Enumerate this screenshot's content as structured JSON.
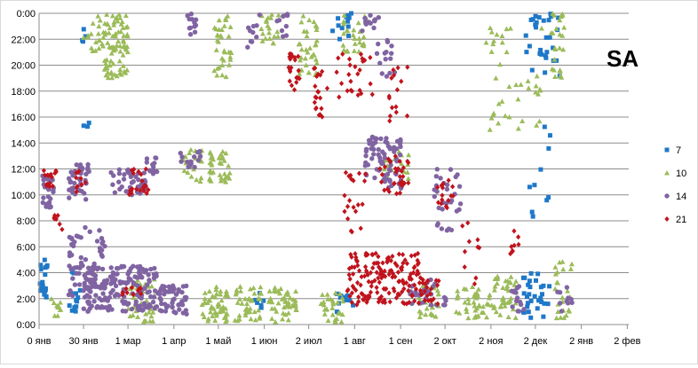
{
  "chart_data": {
    "type": "scatter",
    "title": "SA",
    "xlabel": "",
    "ylabel": "",
    "grid": "horizontal",
    "legend": "right",
    "y_axis_unit": "hours",
    "ylim": [
      0,
      24
    ],
    "yticks": [
      0,
      2,
      4,
      6,
      8,
      10,
      12,
      14,
      16,
      18,
      20,
      22,
      24
    ],
    "ytick_labels": [
      "0:00",
      "2:00",
      "4:00",
      "6:00",
      "8:00",
      "10:00",
      "12:00",
      "14:00",
      "16:00",
      "18:00",
      "20:00",
      "22:00",
      "0:00"
    ],
    "x_axis_unit": "days since 0 янв",
    "xlim": [
      0,
      398
    ],
    "xticks": [
      0,
      30,
      60,
      91,
      121,
      152,
      182,
      213,
      244,
      274,
      305,
      335,
      366,
      397
    ],
    "xtick_labels": [
      "0 янв",
      "30 янв",
      "1 мар",
      "1 апр",
      "1 май",
      "1 июн",
      "2 июл",
      "1 авг",
      "1 сен",
      "2 окт",
      "2 ноя",
      "2 дек",
      "2 янв",
      "2 фев"
    ],
    "series": [
      {
        "name": "7",
        "color": "#1f78c8",
        "marker": "square",
        "clusters": [
          {
            "x": [
              0,
              6
            ],
            "y": [
              1.5,
              5.0
            ],
            "n": 18
          },
          {
            "x": [
              18,
              28
            ],
            "y": [
              1.0,
              4.5
            ],
            "n": 14
          },
          {
            "x": [
              28,
              32
            ],
            "y": [
              21.5,
              23.0
            ],
            "n": 4
          },
          {
            "x": [
              30,
              36
            ],
            "y": [
              14.5,
              16.0
            ],
            "n": 3
          },
          {
            "x": [
              146,
              152
            ],
            "y": [
              0.8,
              2.5
            ],
            "n": 6
          },
          {
            "x": [
              200,
              212
            ],
            "y": [
              0.5,
              2.5
            ],
            "n": 10
          },
          {
            "x": [
              198,
              214
            ],
            "y": [
              22.0,
              24.0
            ],
            "n": 12
          },
          {
            "x": [
              325,
              345
            ],
            "y": [
              0.5,
              4.0
            ],
            "n": 30
          },
          {
            "x": [
              328,
              352
            ],
            "y": [
              19.0,
              24.0
            ],
            "n": 30
          },
          {
            "x": [
              330,
              348
            ],
            "y": [
              8.0,
              16.0
            ],
            "n": 10
          }
        ]
      },
      {
        "name": "10",
        "color": "#9bbb59",
        "marker": "triangle",
        "clusters": [
          {
            "x": [
              8,
              16
            ],
            "y": [
              0.5,
              2.0
            ],
            "n": 10
          },
          {
            "x": [
              44,
              60
            ],
            "y": [
              19.0,
              24.0
            ],
            "n": 80
          },
          {
            "x": [
              30,
              44
            ],
            "y": [
              21.0,
              24.0
            ],
            "n": 20
          },
          {
            "x": [
              60,
              80
            ],
            "y": [
              0.2,
              3.5
            ],
            "n": 45
          },
          {
            "x": [
              95,
              110
            ],
            "y": [
              11.0,
              13.5
            ],
            "n": 25
          },
          {
            "x": [
              110,
              128
            ],
            "y": [
              0.2,
              3.0
            ],
            "n": 50
          },
          {
            "x": [
              115,
              130
            ],
            "y": [
              11.0,
              13.5
            ],
            "n": 35
          },
          {
            "x": [
              118,
              130
            ],
            "y": [
              19.0,
              24.0
            ],
            "n": 35
          },
          {
            "x": [
              132,
              150
            ],
            "y": [
              0.2,
              3.0
            ],
            "n": 40
          },
          {
            "x": [
              155,
              175
            ],
            "y": [
              0.2,
              3.0
            ],
            "n": 45
          },
          {
            "x": [
              150,
              162
            ],
            "y": [
              21.5,
              24.0
            ],
            "n": 20
          },
          {
            "x": [
              175,
              188
            ],
            "y": [
              19.0,
              24.0
            ],
            "n": 35
          },
          {
            "x": [
              190,
              206
            ],
            "y": [
              0.2,
              2.5
            ],
            "n": 30
          },
          {
            "x": [
              205,
              222
            ],
            "y": [
              21.0,
              24.0
            ],
            "n": 30
          },
          {
            "x": [
              255,
              270
            ],
            "y": [
              0.5,
              3.0
            ],
            "n": 30
          },
          {
            "x": [
              280,
              300
            ],
            "y": [
              0.5,
              3.0
            ],
            "n": 35
          },
          {
            "x": [
              302,
              322
            ],
            "y": [
              0.5,
              4.0
            ],
            "n": 45
          },
          {
            "x": [
              300,
              340
            ],
            "y": [
              15.0,
              24.0
            ],
            "n": 40
          },
          {
            "x": [
              345,
              355
            ],
            "y": [
              19.0,
              24.0
            ],
            "n": 25
          },
          {
            "x": [
              348,
              360
            ],
            "y": [
              0.5,
              5.0
            ],
            "n": 25
          },
          {
            "x": [
              230,
              250
            ],
            "y": [
              11.0,
              13.5
            ],
            "n": 15
          }
        ]
      },
      {
        "name": "14",
        "color": "#8064a2",
        "marker": "circle",
        "clusters": [
          {
            "x": [
              2,
              10
            ],
            "y": [
              9.0,
              11.5
            ],
            "n": 30
          },
          {
            "x": [
              20,
              34
            ],
            "y": [
              9.5,
              12.5
            ],
            "n": 40
          },
          {
            "x": [
              20,
              45
            ],
            "y": [
              1.5,
              7.5
            ],
            "n": 60
          },
          {
            "x": [
              30,
              80
            ],
            "y": [
              1.0,
              4.5
            ],
            "n": 170
          },
          {
            "x": [
              80,
              100
            ],
            "y": [
              0.8,
              3.0
            ],
            "n": 50
          },
          {
            "x": [
              48,
              72
            ],
            "y": [
              10.0,
              12.0
            ],
            "n": 45
          },
          {
            "x": [
              72,
              80
            ],
            "y": [
              11.5,
              13.0
            ],
            "n": 12
          },
          {
            "x": [
              95,
              110
            ],
            "y": [
              12.0,
              13.5
            ],
            "n": 15
          },
          {
            "x": [
              100,
              106
            ],
            "y": [
              22.0,
              24.0
            ],
            "n": 12
          },
          {
            "x": [
              160,
              168
            ],
            "y": [
              22.0,
              24.0
            ],
            "n": 10
          },
          {
            "x": [
              140,
              150
            ],
            "y": [
              21.0,
              24.0
            ],
            "n": 10
          },
          {
            "x": [
              220,
              245
            ],
            "y": [
              10.5,
              14.5
            ],
            "n": 80
          },
          {
            "x": [
              225,
              240
            ],
            "y": [
              19.0,
              22.0
            ],
            "n": 15
          },
          {
            "x": [
              218,
              232
            ],
            "y": [
              22.5,
              24.0
            ],
            "n": 12
          },
          {
            "x": [
              250,
              275
            ],
            "y": [
              1.5,
              3.5
            ],
            "n": 30
          },
          {
            "x": [
              265,
              285
            ],
            "y": [
              7.0,
              12.0
            ],
            "n": 30
          },
          {
            "x": [
              315,
              330
            ],
            "y": [
              1.0,
              3.0
            ],
            "n": 15
          },
          {
            "x": [
              345,
              360
            ],
            "y": [
              1.0,
              3.0
            ],
            "n": 10
          }
        ]
      },
      {
        "name": "21",
        "color": "#c0131c",
        "marker": "diamond",
        "clusters": [
          {
            "x": [
              3,
              12
            ],
            "y": [
              10.5,
              12.0
            ],
            "n": 15
          },
          {
            "x": [
              10,
              16
            ],
            "y": [
              7.0,
              8.5
            ],
            "n": 8
          },
          {
            "x": [
              25,
              32
            ],
            "y": [
              10.0,
              12.0
            ],
            "n": 10
          },
          {
            "x": [
              60,
              74
            ],
            "y": [
              10.0,
              12.0
            ],
            "n": 20
          },
          {
            "x": [
              55,
              70
            ],
            "y": [
              2.2,
              3.0
            ],
            "n": 10
          },
          {
            "x": [
              168,
              176
            ],
            "y": [
              18.0,
              21.0
            ],
            "n": 20
          },
          {
            "x": [
              185,
              195
            ],
            "y": [
              16.0,
              20.0
            ],
            "n": 20
          },
          {
            "x": [
              200,
              225
            ],
            "y": [
              17.0,
              21.0
            ],
            "n": 25
          },
          {
            "x": [
              205,
              222
            ],
            "y": [
              7.0,
              12.0
            ],
            "n": 20
          },
          {
            "x": [
              230,
              250
            ],
            "y": [
              10.0,
              13.0
            ],
            "n": 30
          },
          {
            "x": [
              235,
              250
            ],
            "y": [
              15.5,
              20.0
            ],
            "n": 15
          },
          {
            "x": [
              208,
              232
            ],
            "y": [
              1.5,
              5.5
            ],
            "n": 80
          },
          {
            "x": [
              232,
              258
            ],
            "y": [
              1.5,
              5.5
            ],
            "n": 80
          },
          {
            "x": [
              258,
              270
            ],
            "y": [
              1.5,
              3.5
            ],
            "n": 20
          },
          {
            "x": [
              268,
              280
            ],
            "y": [
              9.0,
              11.5
            ],
            "n": 15
          },
          {
            "x": [
              285,
              300
            ],
            "y": [
              2.5,
              8.5
            ],
            "n": 10
          },
          {
            "x": [
              318,
              325
            ],
            "y": [
              4.0,
              8.0
            ],
            "n": 8
          }
        ]
      }
    ]
  }
}
